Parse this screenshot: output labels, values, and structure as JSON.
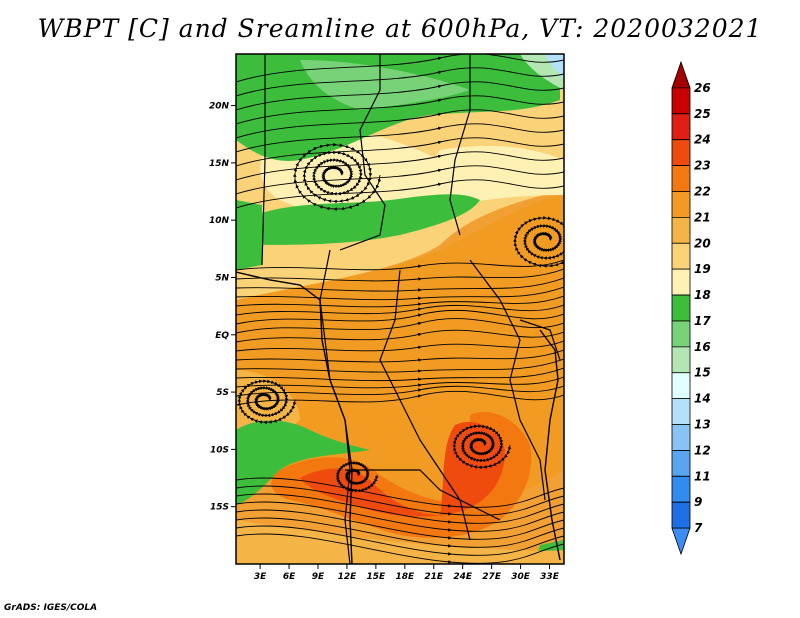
{
  "title": "WBPT [C] and Sreamline at 600hPa, VT: 2020032021",
  "credit": "GrADS: IGES/COLA",
  "map": {
    "lat_ticks": [
      "20N",
      "15N",
      "10N",
      "5N",
      "EQ",
      "5S",
      "10S",
      "15S"
    ],
    "lat_values": [
      20,
      15,
      10,
      5,
      0,
      -5,
      -10,
      -15
    ],
    "lon_ticks": [
      "3E",
      "6E",
      "9E",
      "12E",
      "15E",
      "18E",
      "21E",
      "24E",
      "27E",
      "30E",
      "33E"
    ],
    "lon_values": [
      3,
      6,
      9,
      12,
      15,
      18,
      21,
      24,
      27,
      30,
      33
    ],
    "lat_range": [
      -20,
      24.5
    ],
    "lon_range": [
      0.5,
      34.5
    ]
  },
  "colorbar": {
    "labels": [
      "26",
      "25",
      "24",
      "23",
      "22",
      "21",
      "20",
      "19",
      "18",
      "17",
      "16",
      "15",
      "14",
      "13",
      "12",
      "11",
      "9",
      "7"
    ],
    "colors": [
      "#a50000",
      "#c80000",
      "#e11e14",
      "#f04b0f",
      "#f2780f",
      "#f29b23",
      "#f5b446",
      "#fad278",
      "#fff0b4",
      "#3cbe3c",
      "#78d278",
      "#b4e6b4",
      "#e1ffff",
      "#b4e1fa",
      "#87c3f5",
      "#5aa5f0",
      "#328cf0",
      "#1e6ee6",
      "#3c8cf5"
    ]
  }
}
